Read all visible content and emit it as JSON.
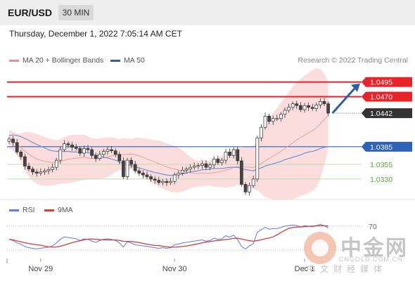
{
  "header": {
    "pair": "EUR/USD",
    "timeframe": "30 MIN",
    "datetime": "Thursday, December 1, 2022 7:05:14 AM CET"
  },
  "legend": {
    "bb_label": "MA 20 + Bollinger Bands",
    "ma50_label": "MA 50",
    "credit": "Research © 2022 Trading Central"
  },
  "rsi_legend": {
    "rsi_label": "RSI",
    "ma_label": "9MA"
  },
  "watermark": {
    "cn": "中金网",
    "url": "CNGOLD.COM.CN",
    "sub": "中文财经媒体"
  },
  "colors": {
    "resistance": "#e8232a",
    "pivot": "#2d63b5",
    "support": "#5aa83e",
    "current": "#333333",
    "bb_fill": "#fbd7d7",
    "ma20": "#f0a0a0",
    "ma50": "#6f92d8",
    "up": "#ffffff",
    "down": "#444444",
    "arrow": "#2d5fa8",
    "rsi": "#5b7fdc",
    "rsi_ma": "#d93a3a"
  },
  "chart_data": {
    "type": "candlestick",
    "y_range": [
      1.03,
      1.0515
    ],
    "x_ticks": [
      "Nov 29",
      "Nov 30",
      "Dec 1"
    ],
    "levels": [
      {
        "label": "1.0495",
        "value": 1.0495,
        "kind": "resistance"
      },
      {
        "label": "1.0470",
        "value": 1.047,
        "kind": "resistance"
      },
      {
        "label": "1.0442",
        "value": 1.0442,
        "kind": "current"
      },
      {
        "label": "1.0385",
        "value": 1.0385,
        "kind": "pivot"
      },
      {
        "label": "1.0355",
        "value": 1.0355,
        "kind": "support"
      },
      {
        "label": "1.0330",
        "value": 1.033,
        "kind": "support"
      }
    ],
    "closes": [
      1.0398,
      1.0392,
      1.0376,
      1.0368,
      1.0352,
      1.0347,
      1.0342,
      1.034,
      1.0342,
      1.0344,
      1.0346,
      1.035,
      1.0362,
      1.038,
      1.039,
      1.0388,
      1.0384,
      1.0382,
      1.0374,
      1.0382,
      1.038,
      1.037,
      1.0365,
      1.0372,
      1.0377,
      1.038,
      1.0378,
      1.0372,
      1.0361,
      1.0334,
      1.0362,
      1.0355,
      1.0344,
      1.034,
      1.0337,
      1.0334,
      1.033,
      1.0328,
      1.0324,
      1.0326,
      1.0324,
      1.0326,
      1.0337,
      1.034,
      1.0345,
      1.0347,
      1.035,
      1.0352,
      1.0353,
      1.0356,
      1.035,
      1.0354,
      1.0364,
      1.0358,
      1.0362,
      1.0376,
      1.037,
      1.038,
      1.0361,
      1.0321,
      1.0308,
      1.0319,
      1.033,
      1.04,
      1.0418,
      1.0437,
      1.0428,
      1.0433,
      1.0433,
      1.044,
      1.0447,
      1.0452,
      1.0458,
      1.0455,
      1.0448,
      1.0455,
      1.0452,
      1.045,
      1.0456,
      1.0462,
      1.0458,
      1.0442
    ],
    "ma50": [
      1.0404,
      1.0405,
      1.0404,
      1.0402,
      1.0399,
      1.0396,
      1.0392,
      1.0389,
      1.0386,
      1.0383,
      1.038,
      1.0378,
      1.0377,
      1.0377,
      1.0377,
      1.0377,
      1.0376,
      1.0376,
      1.0375,
      1.0375,
      1.0375,
      1.0373,
      1.0371,
      1.0369,
      1.0367,
      1.0366,
      1.0364,
      1.0362,
      1.0359,
      1.0356,
      1.0354,
      1.0353,
      1.0351,
      1.0349,
      1.0347,
      1.0345,
      1.0343,
      1.0341,
      1.034,
      1.0338,
      1.0337,
      1.0336,
      1.0337,
      1.0338,
      1.0339,
      1.034,
      1.0342,
      1.0343,
      1.0344,
      1.0346,
      1.0346,
      1.0347,
      1.0348,
      1.0348,
      1.0348,
      1.0349,
      1.035,
      1.035,
      1.035,
      1.0348,
      1.0346,
      1.0345,
      1.0344,
      1.0347,
      1.0349,
      1.0352,
      1.0354,
      1.0356,
      1.0358,
      1.036,
      1.0363,
      1.0365,
      1.0367,
      1.0369,
      1.0371,
      1.0374,
      1.0376,
      1.0377,
      1.0379,
      1.0382,
      1.0384,
      1.0385
    ],
    "rsi_scale": [
      30,
      70
    ],
    "rsi_label": "70",
    "rsi": [
      48,
      46,
      42,
      40,
      36,
      34,
      33,
      32,
      33,
      34,
      35,
      37,
      42,
      48,
      52,
      51,
      50,
      49,
      46,
      49,
      48,
      45,
      43,
      46,
      48,
      49,
      48,
      46,
      42,
      35,
      44,
      42,
      39,
      38,
      37,
      36,
      35,
      34,
      33,
      34,
      33,
      34,
      39,
      40,
      42,
      43,
      44,
      45,
      46,
      47,
      45,
      46,
      50,
      48,
      49,
      54,
      52,
      55,
      48,
      36,
      32,
      37,
      41,
      60,
      64,
      68,
      65,
      66,
      66,
      68,
      70,
      71,
      72,
      71,
      69,
      71,
      70,
      69,
      71,
      73,
      71,
      67
    ]
  }
}
